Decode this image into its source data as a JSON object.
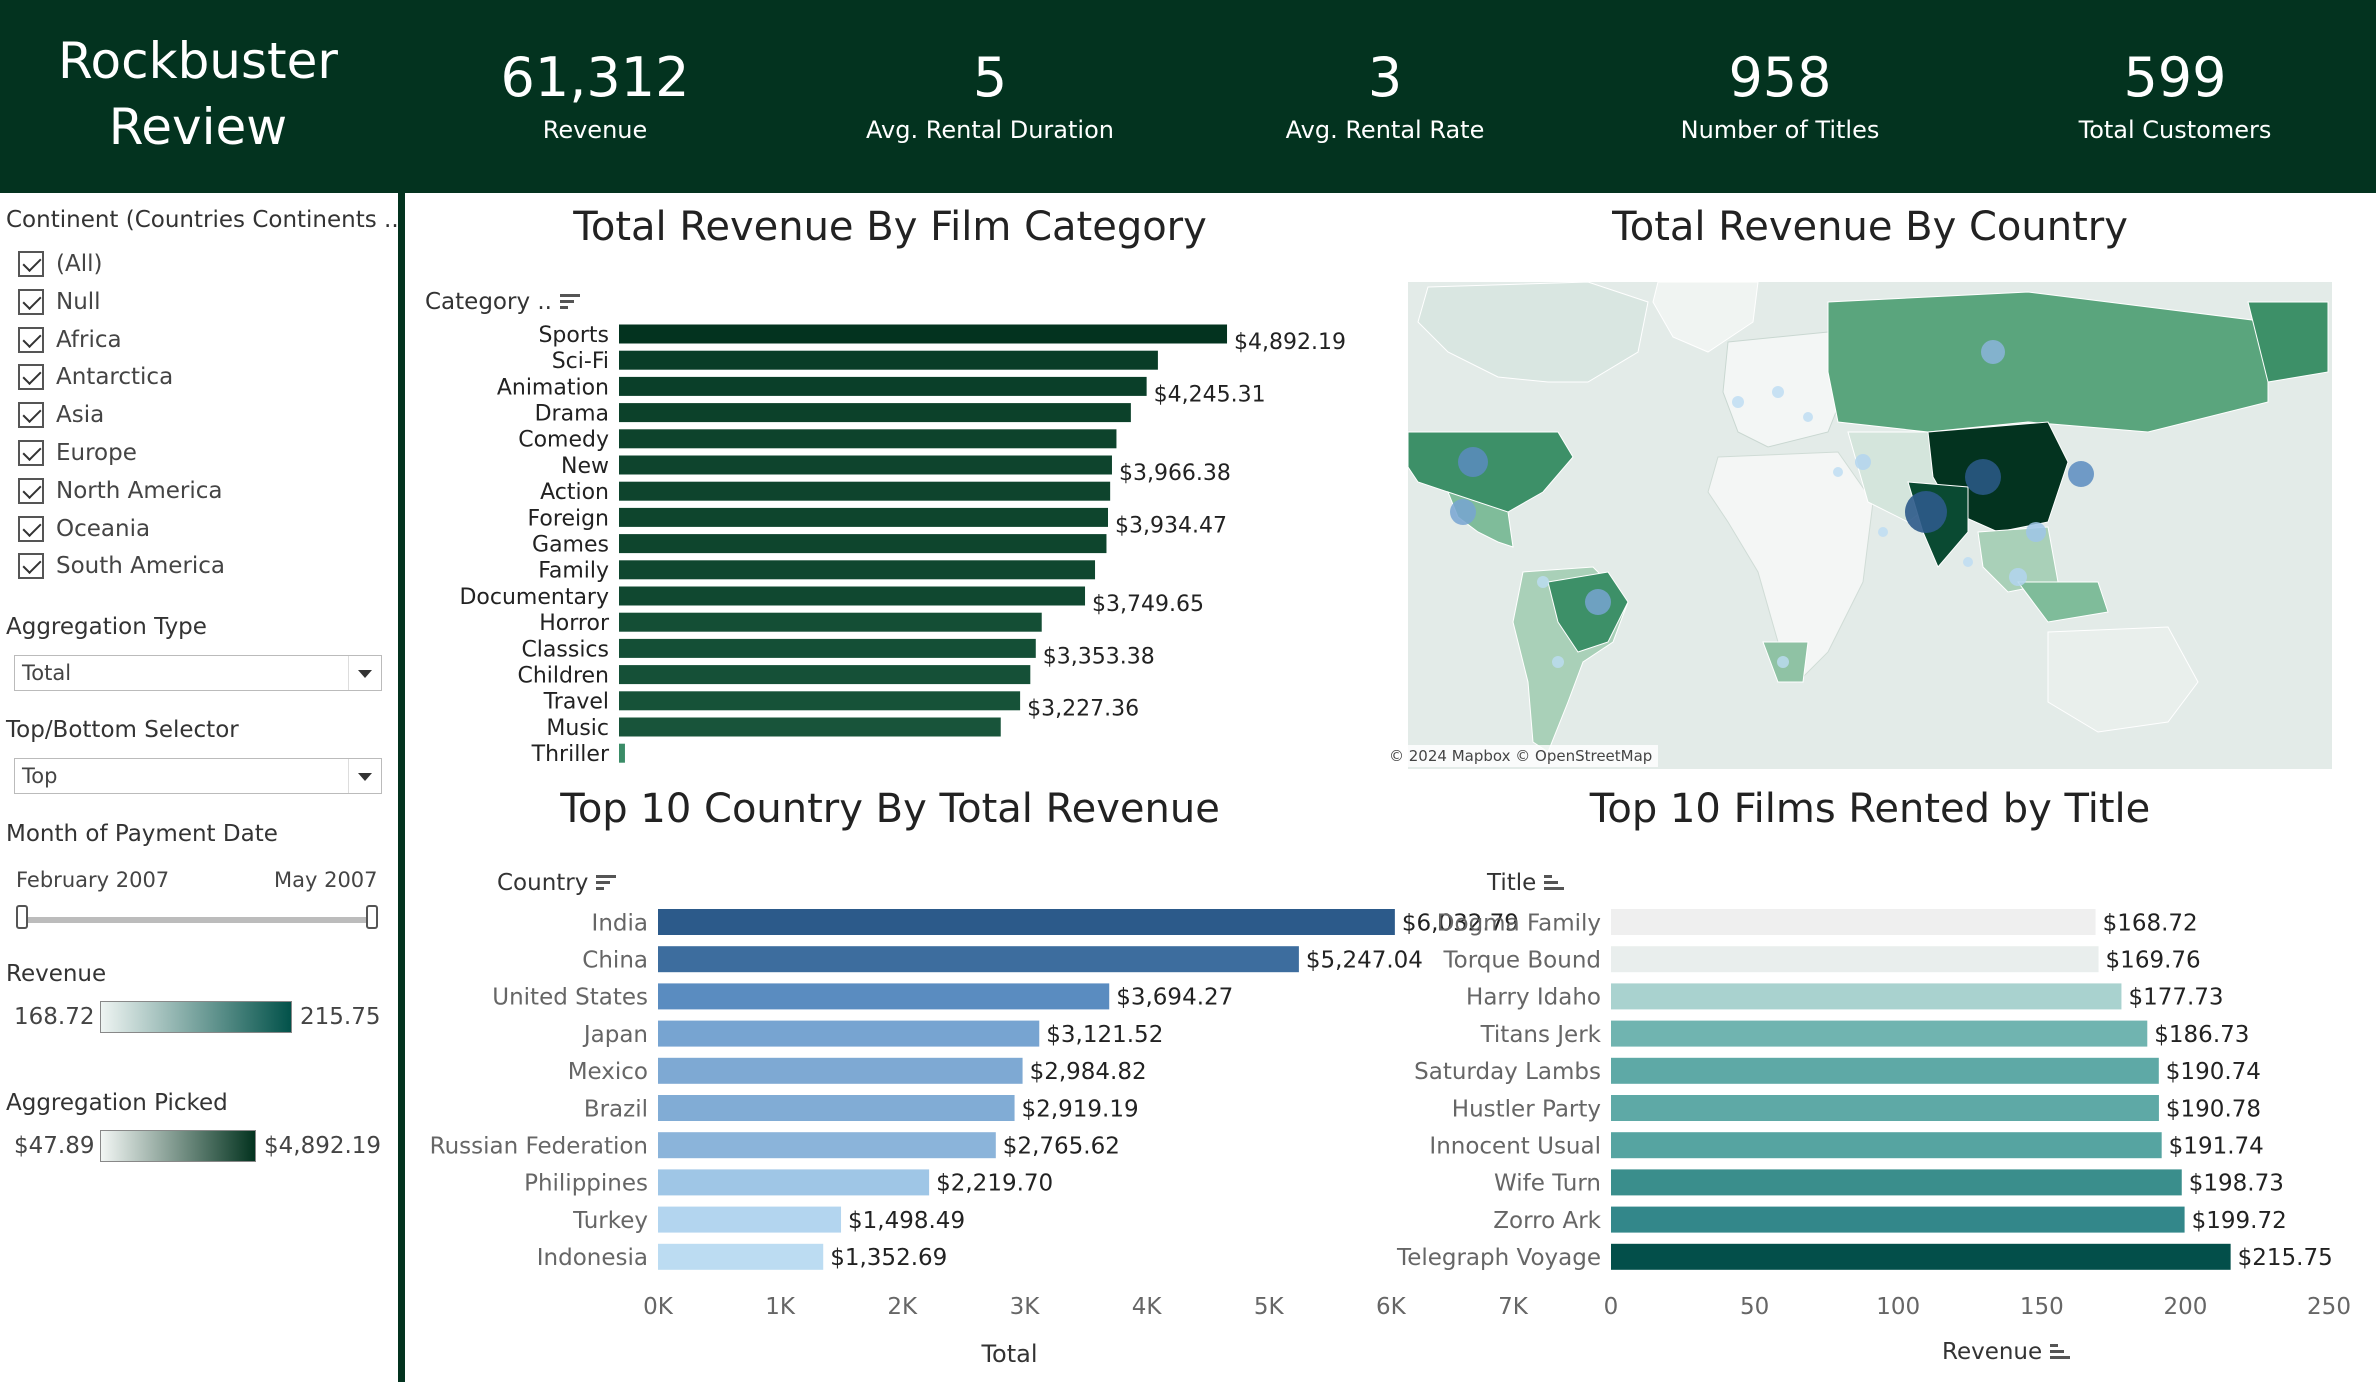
{
  "header": {
    "title_line1": "Rockbuster",
    "title_line2": "Review",
    "kpis": [
      {
        "value": "61,312",
        "label": "Revenue"
      },
      {
        "value": "5",
        "label": "Avg. Rental Duration"
      },
      {
        "value": "3",
        "label": "Avg. Rental Rate"
      },
      {
        "value": "958",
        "label": "Number of Titles"
      },
      {
        "value": "599",
        "label": "Total Customers"
      }
    ]
  },
  "sidebar": {
    "continent_filter": {
      "title": "Continent (Countries Continents ..",
      "items": [
        "(All)",
        "Null",
        "Africa",
        "Antarctica",
        "Asia",
        "Europe",
        "North America",
        "Oceania",
        "South America"
      ]
    },
    "aggregation_type": {
      "title": "Aggregation Type",
      "value": "Total"
    },
    "top_bottom": {
      "title": "Top/Bottom Selector",
      "value": "Top"
    },
    "month_payment": {
      "title": "Month of Payment Date",
      "start": "February 2007",
      "end": "May 2007"
    },
    "revenue_legend": {
      "title": "Revenue",
      "min": "168.72",
      "max": "215.75",
      "color_min": "#eef4f2",
      "color_max": "#02524a"
    },
    "aggregation_legend": {
      "title": "Aggregation Picked",
      "min": "$47.89",
      "max": "$4,892.19",
      "color_min": "#f2f6f4",
      "color_max": "#03331f"
    }
  },
  "chart_data": [
    {
      "type": "bar",
      "orientation": "horizontal",
      "title": "Total Revenue By Film Category",
      "field_label": "Category ..",
      "categories": [
        "Sports",
        "Sci-Fi",
        "Animation",
        "Drama",
        "Comedy",
        "New",
        "Action",
        "Foreign",
        "Games",
        "Family",
        "Documentary",
        "Horror",
        "Classics",
        "Children",
        "Travel",
        "Music",
        "Thriller"
      ],
      "values": [
        4892.19,
        4336.01,
        4245.31,
        4118.46,
        4002.48,
        3966.38,
        3951.84,
        3934.47,
        3922.18,
        3830.15,
        3749.65,
        3401.27,
        3353.38,
        3309.39,
        3227.36,
        3071.52,
        47.89
      ],
      "data_labels": [
        "$4,892.19",
        "",
        "$4,245.31",
        "",
        "",
        "$3,966.38",
        "",
        "$3,934.47",
        "",
        "",
        "$3,749.65",
        "",
        "$3,353.38",
        "",
        "$3,227.36",
        "",
        ""
      ],
      "xlim": [
        0,
        7000
      ]
    },
    {
      "type": "map",
      "title": "Total Revenue By Country",
      "attribution": "© 2024 Mapbox © OpenStreetMap"
    },
    {
      "type": "bar",
      "orientation": "horizontal",
      "title": "Top 10 Country By Total Revenue",
      "field_label": "Country",
      "categories": [
        "India",
        "China",
        "United States",
        "Japan",
        "Mexico",
        "Brazil",
        "Russian Federation",
        "Philippines",
        "Turkey",
        "Indonesia"
      ],
      "values": [
        6032.79,
        5247.04,
        3694.27,
        3121.52,
        2984.82,
        2919.19,
        2765.62,
        2219.7,
        1498.49,
        1352.69
      ],
      "data_labels": [
        "$6,032.79",
        "$5,247.04",
        "$3,694.27",
        "$3,121.52",
        "$2,984.82",
        "$2,919.19",
        "$2,765.62",
        "$2,219.70",
        "$1,498.49",
        "$1,352.69"
      ],
      "bar_colors": [
        "#2c5a8a",
        "#3d6d9e",
        "#5a8cc0",
        "#77a4d1",
        "#7ea9d3",
        "#81acd5",
        "#8bb4da",
        "#9fc6e6",
        "#b3d5ef",
        "#bcdcf2"
      ],
      "xticks": [
        "0K",
        "1K",
        "2K",
        "3K",
        "4K",
        "5K",
        "6K",
        "7K"
      ],
      "xlim": [
        0,
        7000
      ],
      "xlabel": "Total"
    },
    {
      "type": "bar",
      "orientation": "horizontal",
      "title": "Top 10 Films Rented by Title",
      "field_label": "Title",
      "categories": [
        "Dogma Family",
        "Torque Bound",
        "Harry Idaho",
        "Titans Jerk",
        "Saturday Lambs",
        "Hustler Party",
        "Innocent Usual",
        "Wife Turn",
        "Zorro Ark",
        "Telegraph Voyage"
      ],
      "values": [
        168.72,
        169.76,
        177.73,
        186.73,
        190.74,
        190.78,
        191.74,
        198.73,
        199.72,
        215.75
      ],
      "data_labels": [
        "$168.72",
        "$169.76",
        "$177.73",
        "$186.73",
        "$190.74",
        "$190.78",
        "$191.74",
        "$198.73",
        "$199.72",
        "$215.75"
      ],
      "bar_colors": [
        "#efefef",
        "#e9eeed",
        "#a9d2cf",
        "#70b4b0",
        "#5ea9a6",
        "#5ea9a6",
        "#56a4a1",
        "#3a8e8c",
        "#33878a",
        "#034f4a"
      ],
      "xticks": [
        "0",
        "50",
        "100",
        "150",
        "200",
        "250"
      ],
      "xlim": [
        0,
        250
      ],
      "xlabel": "Revenue"
    }
  ]
}
